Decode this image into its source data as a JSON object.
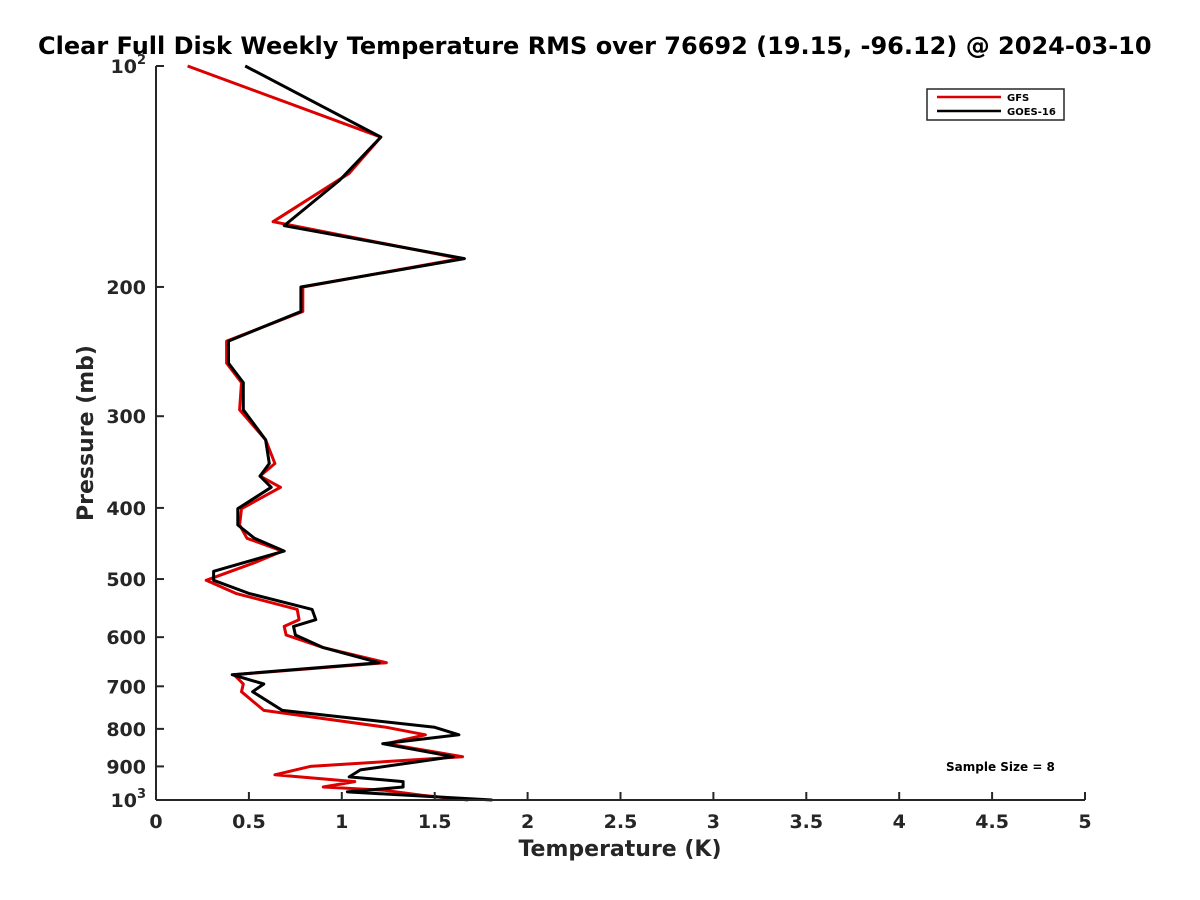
{
  "chart_data": {
    "type": "line",
    "title": "Clear Full Disk Weekly Temperature RMS over 76692 (19.15, -96.12) @ 2024-03-10",
    "xlabel": "Temperature (K)",
    "ylabel": "Pressure (mb)",
    "xlim": [
      0,
      5
    ],
    "ylim": [
      1000,
      100
    ],
    "yscale": "log",
    "y_reversed": true,
    "grid": false,
    "legend_position": "top-right",
    "x_ticks": [
      "0",
      "0.5",
      "1",
      "1.5",
      "2",
      "2.5",
      "3",
      "3.5",
      "4",
      "4.5",
      "5"
    ],
    "y_ticks": [
      {
        "value": 100,
        "label": "10",
        "sup": "2"
      },
      {
        "value": 200,
        "label": "200",
        "sup": ""
      },
      {
        "value": 300,
        "label": "300",
        "sup": ""
      },
      {
        "value": 400,
        "label": "400",
        "sup": ""
      },
      {
        "value": 500,
        "label": "500",
        "sup": ""
      },
      {
        "value": 600,
        "label": "600",
        "sup": ""
      },
      {
        "value": 700,
        "label": "700",
        "sup": ""
      },
      {
        "value": 800,
        "label": "800",
        "sup": ""
      },
      {
        "value": 900,
        "label": "900",
        "sup": ""
      },
      {
        "value": 1000,
        "label": "10",
        "sup": "3"
      }
    ],
    "series": [
      {
        "name": "GFS",
        "color": "#dd0000",
        "points": [
          [
            0.17,
            100
          ],
          [
            1.21,
            125
          ],
          [
            1.04,
            140
          ],
          [
            0.63,
            163
          ],
          [
            1.64,
            183
          ],
          [
            0.79,
            200
          ],
          [
            0.79,
            216
          ],
          [
            0.38,
            237
          ],
          [
            0.38,
            254
          ],
          [
            0.46,
            270
          ],
          [
            0.45,
            294
          ],
          [
            0.59,
            323
          ],
          [
            0.64,
            348
          ],
          [
            0.56,
            362
          ],
          [
            0.67,
            375
          ],
          [
            0.46,
            401
          ],
          [
            0.45,
            422
          ],
          [
            0.49,
            440
          ],
          [
            0.68,
            458
          ],
          [
            0.53,
            475
          ],
          [
            0.27,
            502
          ],
          [
            0.43,
            523
          ],
          [
            0.76,
            550
          ],
          [
            0.77,
            568
          ],
          [
            0.69,
            580
          ],
          [
            0.7,
            596
          ],
          [
            0.9,
            620
          ],
          [
            1.24,
            650
          ],
          [
            0.42,
            675
          ],
          [
            0.47,
            695
          ],
          [
            0.46,
            712
          ],
          [
            0.58,
            755
          ],
          [
            1.24,
            796
          ],
          [
            1.45,
            815
          ],
          [
            1.24,
            838
          ],
          [
            1.65,
            873
          ],
          [
            0.83,
            900
          ],
          [
            0.64,
            924
          ],
          [
            1.07,
            944
          ],
          [
            0.9,
            960
          ],
          [
            1.23,
            970
          ],
          [
            1.43,
            985
          ],
          [
            1.68,
            1000
          ]
        ]
      },
      {
        "name": "GOES-16",
        "color": "#000000",
        "points": [
          [
            0.48,
            100
          ],
          [
            1.21,
            125
          ],
          [
            0.99,
            143
          ],
          [
            0.69,
            165
          ],
          [
            1.66,
            183
          ],
          [
            0.78,
            200
          ],
          [
            0.78,
            216
          ],
          [
            0.39,
            237
          ],
          [
            0.39,
            254
          ],
          [
            0.47,
            270
          ],
          [
            0.47,
            294
          ],
          [
            0.59,
            323
          ],
          [
            0.61,
            348
          ],
          [
            0.56,
            362
          ],
          [
            0.62,
            375
          ],
          [
            0.44,
            401
          ],
          [
            0.44,
            422
          ],
          [
            0.53,
            440
          ],
          [
            0.69,
            458
          ],
          [
            0.31,
            488
          ],
          [
            0.31,
            502
          ],
          [
            0.5,
            523
          ],
          [
            0.84,
            550
          ],
          [
            0.86,
            568
          ],
          [
            0.74,
            580
          ],
          [
            0.75,
            596
          ],
          [
            0.9,
            620
          ],
          [
            1.2,
            650
          ],
          [
            0.41,
            675
          ],
          [
            0.58,
            695
          ],
          [
            0.52,
            712
          ],
          [
            0.68,
            755
          ],
          [
            1.5,
            796
          ],
          [
            1.63,
            815
          ],
          [
            1.22,
            838
          ],
          [
            1.6,
            873
          ],
          [
            1.1,
            910
          ],
          [
            1.04,
            930
          ],
          [
            1.33,
            944
          ],
          [
            1.33,
            960
          ],
          [
            1.03,
            975
          ],
          [
            1.81,
            1000
          ]
        ]
      }
    ],
    "legend": [
      {
        "label": "GFS",
        "color": "#dd0000"
      },
      {
        "label": "GOES-16",
        "color": "#000000"
      }
    ],
    "annotations": [
      "Sample Size = 8"
    ]
  }
}
